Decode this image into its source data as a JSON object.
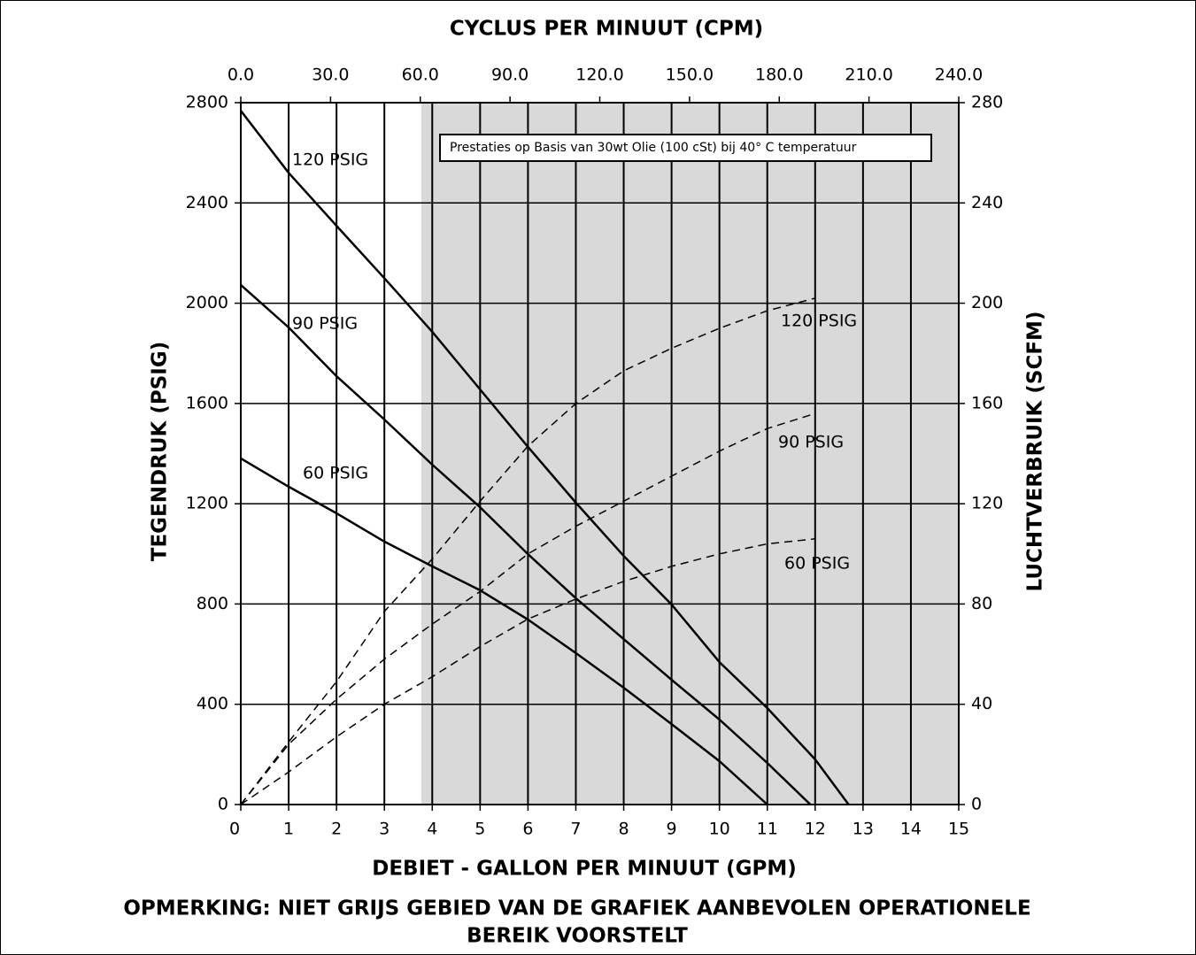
{
  "chart_data": {
    "type": "line",
    "title": "CYCLUS PER MINUUT (CPM)",
    "xlabel": "DEBIET - GALLON PER MINUUT (GPM)",
    "ylabel": "TEGENDRUK (PSIG)",
    "y2label": "LUCHTVERBRUIK (SCFM)",
    "note": [
      "OPMERKING: NIET GRIJS GEBIED VAN DE GRAFIEK AANBEVOLEN OPERATIONELE",
      "BEREIK VOORSTELT"
    ],
    "annotation": "Prestaties op Basis van 30wt Olie (100 cSt) bij 40° C temperatuur",
    "xlim": [
      0,
      15
    ],
    "xticks": [
      0,
      1,
      2,
      3,
      4,
      5,
      6,
      7,
      8,
      9,
      10,
      11,
      12,
      13,
      14,
      15
    ],
    "x2lim": [
      0,
      240
    ],
    "x2ticks": [
      {
        "value": 0,
        "label": "0.0"
      },
      {
        "value": 30,
        "label": "30.0"
      },
      {
        "value": 60,
        "label": "60.0"
      },
      {
        "value": 90,
        "label": "90.0"
      },
      {
        "value": 120,
        "label": "120.0"
      },
      {
        "value": 150,
        "label": "150.0"
      },
      {
        "value": 180,
        "label": "180.0"
      },
      {
        "value": 210,
        "label": "210.0"
      },
      {
        "value": 240,
        "label": "240.0"
      }
    ],
    "ylim": [
      0,
      2800
    ],
    "yticks": [
      0,
      400,
      800,
      1200,
      1600,
      2000,
      2400,
      2800
    ],
    "y2lim": [
      0,
      280
    ],
    "y2ticks": [
      0,
      40,
      80,
      120,
      160,
      200,
      240,
      280
    ],
    "grid": true,
    "shaded_xlim": [
      3.77,
      15
    ],
    "shaded_color": "#d9d9d9",
    "series": [
      {
        "name": "120 PSIG",
        "color": "#000000",
        "dashed": false,
        "x": [
          0,
          1,
          2,
          3,
          4,
          5,
          6,
          7,
          8,
          9,
          10,
          11,
          12,
          12.7
        ],
        "values": [
          2768,
          2520,
          2309,
          2100,
          1886,
          1656,
          1427,
          1204,
          992,
          798,
          568,
          385,
          180,
          0
        ]
      },
      {
        "name": "90 PSIG",
        "color": "#000000",
        "dashed": false,
        "x": [
          0,
          1,
          2,
          3,
          4,
          5,
          6,
          7,
          8,
          9,
          10,
          11,
          11.9
        ],
        "values": [
          2073,
          1903,
          1709,
          1536,
          1356,
          1186,
          999,
          823,
          660,
          498,
          339,
          166,
          0
        ]
      },
      {
        "name": "60 PSIG",
        "color": "#000000",
        "dashed": false,
        "x": [
          0,
          1,
          2,
          3,
          4,
          5,
          6,
          7,
          8,
          9,
          10,
          11
        ],
        "values": [
          1381,
          1268,
          1162,
          1049,
          950,
          855,
          738,
          604,
          466,
          321,
          173,
          0
        ]
      },
      {
        "name": "120 PSIG",
        "color": "#000000",
        "dashed": true,
        "axis": "y2",
        "x": [
          0,
          1,
          2,
          3,
          4,
          5,
          6,
          7,
          8,
          9,
          10,
          11,
          12
        ],
        "values": [
          0,
          25,
          49,
          77,
          98,
          121,
          143,
          160,
          173,
          182,
          190,
          197,
          202
        ]
      },
      {
        "name": "90 PSIG",
        "color": "#000000",
        "dashed": true,
        "axis": "y2",
        "x": [
          0,
          1,
          2,
          3,
          4,
          5,
          6,
          7,
          8,
          9,
          10,
          11,
          12
        ],
        "values": [
          0,
          24,
          42,
          58,
          72,
          85,
          100,
          111,
          121,
          131,
          141,
          150,
          156
        ]
      },
      {
        "name": "60 PSIG",
        "color": "#000000",
        "dashed": true,
        "axis": "y2",
        "x": [
          0,
          1,
          2,
          3,
          4,
          5,
          6,
          7,
          8,
          9,
          10,
          11,
          12
        ],
        "values": [
          0,
          13,
          27,
          40,
          51,
          63,
          74,
          82,
          89,
          95,
          100,
          104,
          106
        ]
      }
    ]
  }
}
